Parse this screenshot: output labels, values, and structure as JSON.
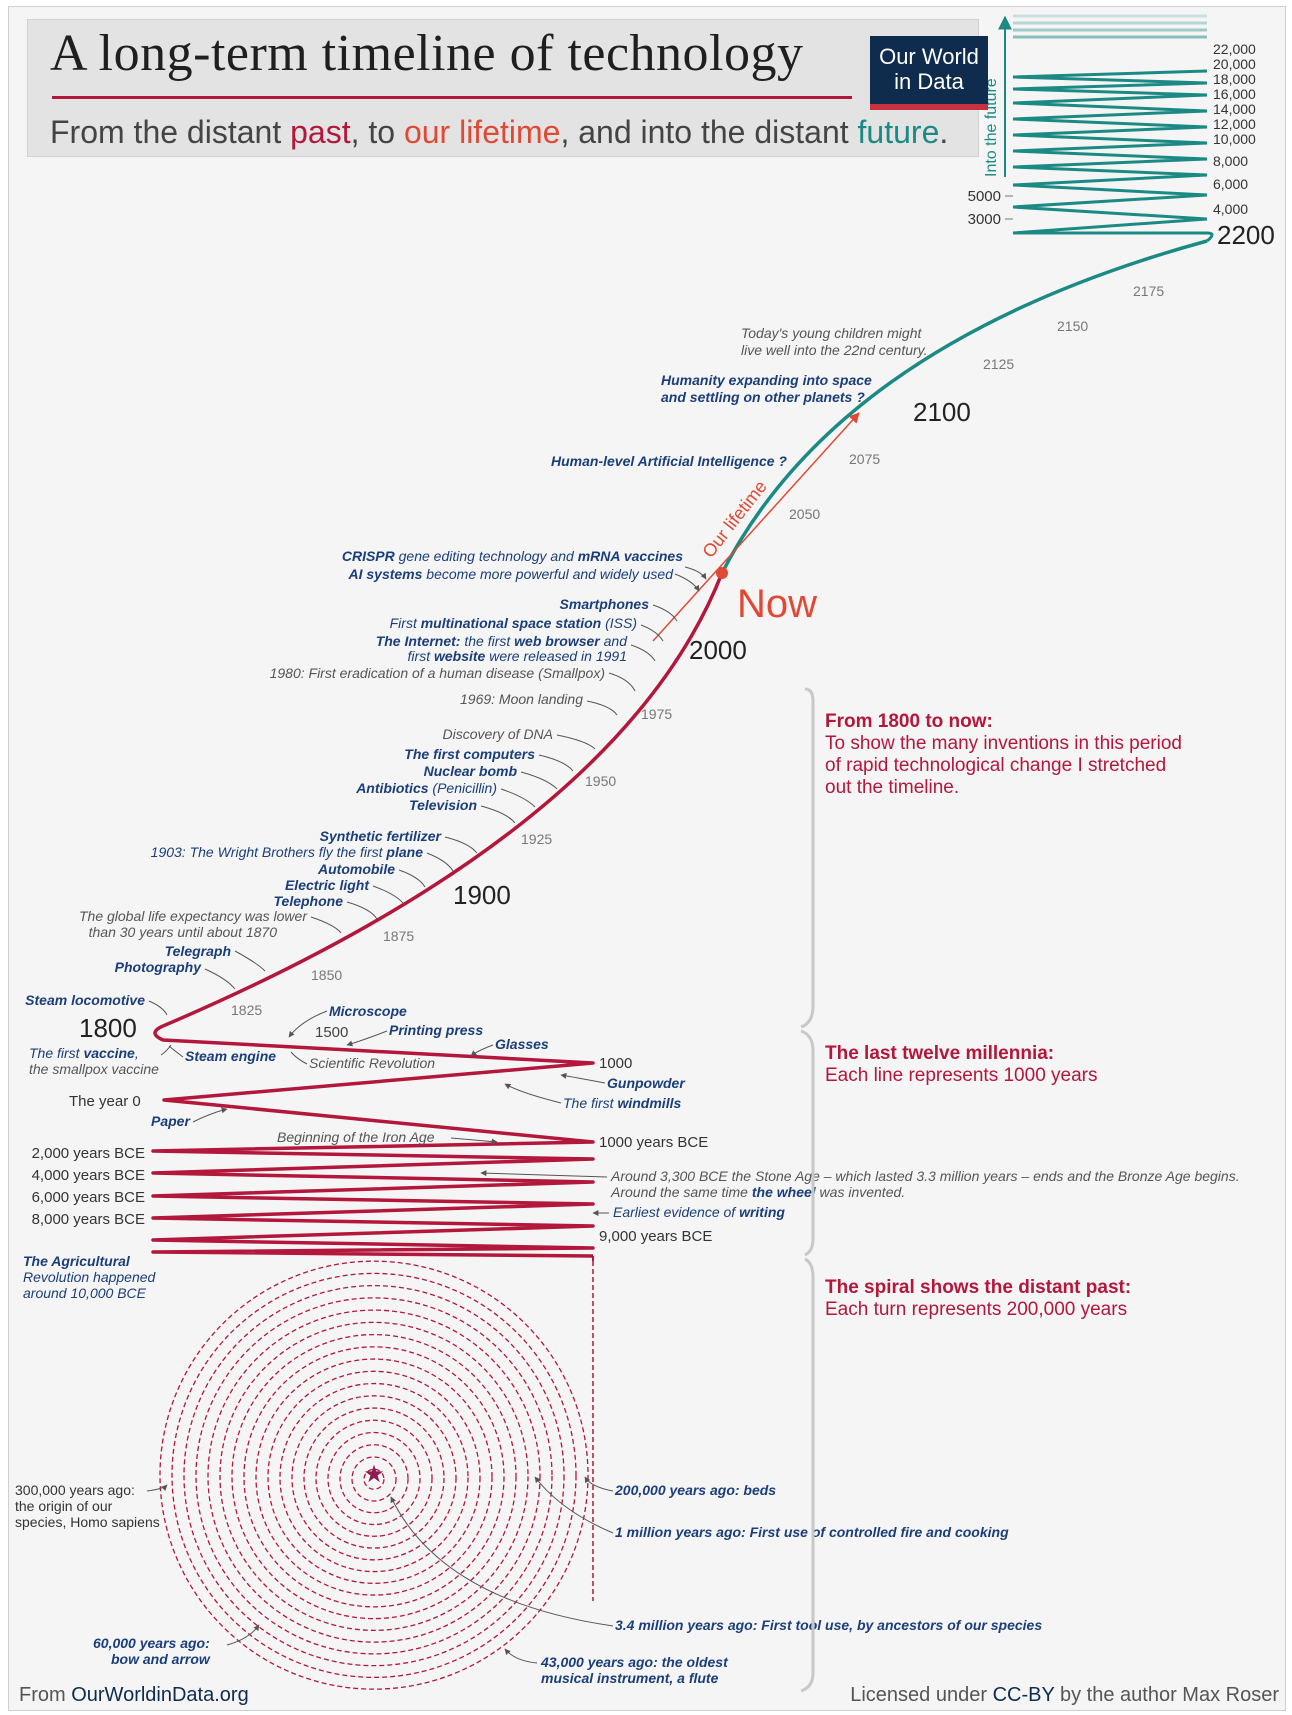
{
  "header": {
    "title": "A long-term timeline of technology",
    "subtitle_parts": [
      "From the distant ",
      "past",
      ", to ",
      "our lifetime",
      ", and into the distant ",
      "future",
      "."
    ],
    "logo_line1": "Our World",
    "logo_line2": "in Data"
  },
  "colors": {
    "past": "#b3173c",
    "lifetime": "#e04a35",
    "future": "#1b8a85",
    "events": "#1b3e7a"
  },
  "future_axis": {
    "label": "Into the future",
    "right_ticks": [
      "22,000",
      "20,000",
      "18,000",
      "16,000",
      "14,000",
      "12,000",
      "10,000",
      "8,000",
      "6,000",
      "4,000"
    ],
    "left_ticks": [
      "5000",
      "3000"
    ],
    "top_year": "2200"
  },
  "curve_years": {
    "y2100": "2100",
    "y2000": "2000",
    "y1900": "1900",
    "y1800": "1800",
    "now": "Now",
    "our_lifetime": "Our lifetime"
  },
  "curve_ticks": [
    "2175",
    "2150",
    "2125",
    "2075",
    "2050",
    "1975",
    "1950",
    "1925",
    "1875",
    "1850",
    "1825"
  ],
  "future_notes": {
    "children_1": "Today's young children might",
    "children_2": "live well into the 22nd century.",
    "space_1": "Humanity expanding into space",
    "space_2": "and settling on other planets ?",
    "ai": "Human-level Artificial Intelligence ?"
  },
  "events_1800_now": {
    "crispr_1a": "CRISPR",
    "crispr_1b": " gene editing technology and ",
    "crispr_1c": "mRNA vaccines",
    "crispr_2a": "AI systems",
    "crispr_2b": " become more powerful and widely used",
    "smartphones": "Smartphones",
    "iss_a": "First ",
    "iss_b": "multinational space station",
    "iss_c": " (ISS)",
    "internet_1a": "The Internet:",
    "internet_1b": " the first ",
    "internet_1c": "web browser",
    "internet_1d": " and",
    "internet_2a": "first ",
    "internet_2b": "website",
    "internet_2c": " were released in 1991",
    "smallpox": "1980: First eradication of a human disease (Smallpox)",
    "moon": "1969: Moon landing",
    "dna": "Discovery of DNA",
    "computers": "The first computers",
    "nuclear": "Nuclear bomb",
    "antibiotics_a": "Antibiotics",
    "antibiotics_b": " (Penicillin)",
    "television": "Television",
    "fertilizer": "Synthetic fertilizer",
    "wright_a": "1903: The Wright Brothers fly the first ",
    "wright_b": "plane",
    "automobile": "Automobile",
    "electric": "Electric light",
    "telephone": "Telephone",
    "lifeexp_1": "The global life expectancy was lower",
    "lifeexp_2": "than 30 years until about 1870",
    "telegraph": "Telegraph",
    "photography": "Photography",
    "steam_loco": "Steam locomotive"
  },
  "millennia": {
    "microscope": "Microscope",
    "y1500": "1500",
    "printing": "Printing press",
    "glasses": "Glasses",
    "vaccine_1a": "The first ",
    "vaccine_1b": "vaccine",
    "vaccine_1c": ",",
    "vaccine_2": "the smallpox vaccine",
    "steam_engine": "Steam engine",
    "sci_rev": "Scientific Revolution",
    "y1000": "1000",
    "gunpowder": "Gunpowder",
    "windmills_a": "The first ",
    "windmills_b": "windmills",
    "year0": "The year 0",
    "paper": "Paper",
    "iron_age": "Beginning of the Iron Age",
    "bce1000": "1000 years BCE",
    "bce2000": "2,000 years BCE",
    "bce4000": "4,000 years BCE",
    "bce6000": "6,000 years BCE",
    "bce8000": "8,000 years BCE",
    "stone_1": "Around 3,300 BCE the Stone Age – which lasted 3.3 million years – ends and the Bronze Age begins.",
    "stone_2a": "Around the same time ",
    "stone_2b": "the wheel",
    "stone_2c": " was invented.",
    "writing_a": "Earliest evidence of ",
    "writing_b": "writing",
    "bce9000": "9,000 years BCE",
    "agri_1": "The Agricultural",
    "agri_2": "Revolution happened",
    "agri_3": "around 10,000 BCE"
  },
  "spiral": {
    "homo_1": "300,000 years ago:",
    "homo_2": "the origin of our",
    "homo_3": "species, Homo sapiens",
    "beds": "200,000 years ago: beds",
    "fire": "1 million years ago: First use of controlled fire and cooking",
    "tools": "3.4 million years ago: First tool use, by ancestors of our species",
    "bow_1": "60,000 years ago:",
    "bow_2": "bow and arrow",
    "flute_1": "43,000 years ago: the oldest",
    "flute_2": "musical instrument, a flute"
  },
  "sections": {
    "s1_head": "From 1800 to now:",
    "s1_l1": "To show the many inventions in this period",
    "s1_l2": "of rapid technological change I stretched",
    "s1_l3": "out the timeline.",
    "s2_head": "The last twelve millennia:",
    "s2_l1": "Each line represents 1000 years",
    "s3_head": "The spiral shows the distant past:",
    "s3_l1": "Each turn represents 200,000 years"
  },
  "footer": {
    "from": "From ",
    "site": "OurWorldinData.org",
    "lic_a": "Licensed under ",
    "lic_b": "CC-BY",
    "lic_c": " by the author Max Roser"
  }
}
